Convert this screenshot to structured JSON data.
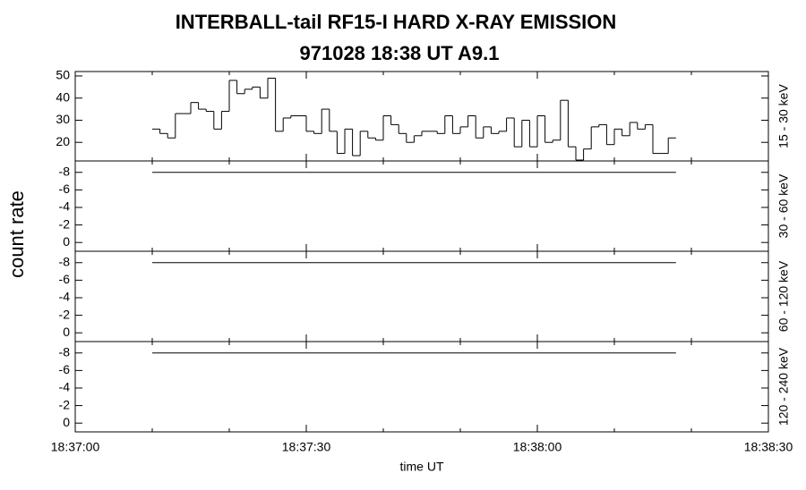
{
  "chart_data": [
    {
      "type": "histogram",
      "title": "INTERBALL-tail  RF15-I  HARD  X-RAY  EMISSION",
      "subtitle": "971028     18:38 UT     A9.1",
      "ylabel": "count rate",
      "channel": "15 - 30 keV",
      "bins": [
        10,
        11,
        12,
        13,
        14,
        15,
        16,
        17,
        18,
        19,
        20,
        21,
        22,
        23,
        24,
        25,
        26,
        27,
        28,
        29,
        30,
        31,
        32,
        33,
        34,
        35,
        36,
        37,
        38,
        39,
        40,
        41,
        42,
        43,
        44,
        45,
        46,
        47,
        48,
        49,
        50,
        51,
        52,
        53,
        54,
        55,
        56,
        57,
        58,
        59,
        60,
        61,
        62,
        63,
        64,
        65,
        66,
        67,
        68,
        69,
        70,
        71,
        72,
        73,
        74,
        75,
        76,
        77,
        78
      ],
      "values": [
        26,
        24,
        22,
        33,
        33,
        38,
        35,
        34,
        26,
        34,
        48,
        42,
        44,
        45,
        40,
        49,
        25,
        31,
        32,
        32,
        25,
        24,
        35,
        25,
        15,
        26,
        14,
        25,
        22,
        21,
        32,
        28,
        24,
        20,
        23,
        25,
        25,
        24,
        32,
        24,
        27,
        32,
        22,
        27,
        24,
        25,
        31,
        18,
        30,
        18,
        32,
        20,
        21,
        39,
        18,
        12,
        17,
        27,
        28,
        19,
        26,
        23,
        29,
        26,
        28,
        15,
        15,
        22
      ],
      "ylim": [
        11.6,
        52
      ],
      "yticks": [
        20,
        30,
        40,
        50
      ]
    },
    {
      "type": "histogram",
      "channel": "30 - 60 keV",
      "bins": [
        10,
        78
      ],
      "values": [
        -8
      ],
      "ylim": [
        1.0,
        -9.3
      ],
      "yticks": [
        -8,
        -6,
        -4,
        -2,
        0
      ]
    },
    {
      "type": "histogram",
      "channel": "60 - 120 keV",
      "bins": [
        10,
        78
      ],
      "values": [
        -8
      ],
      "ylim": [
        1.0,
        -9.3
      ],
      "yticks": [
        -8,
        -6,
        -4,
        -2,
        0
      ]
    },
    {
      "type": "histogram",
      "channel": "120 - 240 keV",
      "bins": [
        10,
        78
      ],
      "values": [
        -8
      ],
      "ylim": [
        1.0,
        -9.3
      ],
      "yticks": [
        -8,
        -6,
        -4,
        -2,
        0
      ],
      "xlabel": "time UT",
      "xlim": [
        0,
        90
      ],
      "xticks": [
        {
          "value": 0,
          "label": "18:37:00"
        },
        {
          "value": 30,
          "label": "18:37:30"
        },
        {
          "value": 60,
          "label": "18:38:00"
        },
        {
          "value": 90,
          "label": "18:38:30"
        }
      ],
      "xminorticks": [
        10,
        20,
        40,
        50,
        70,
        80
      ]
    }
  ]
}
